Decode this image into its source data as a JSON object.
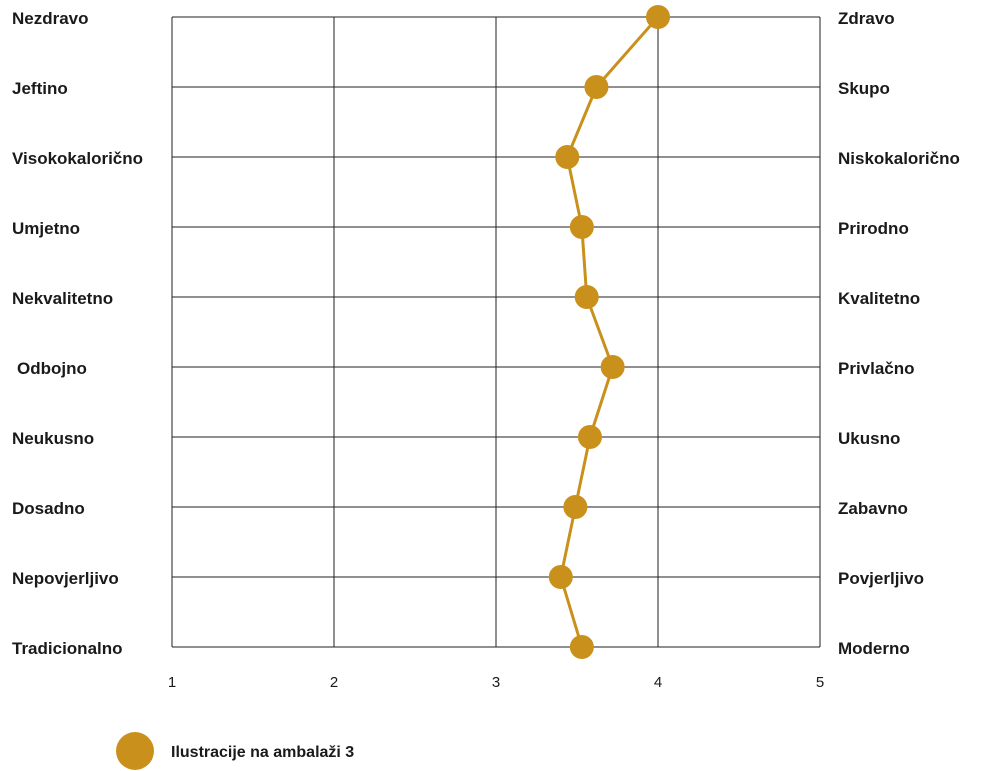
{
  "chart_data": {
    "type": "line",
    "orientation": "horizontal-profile",
    "left_labels": [
      "Nezdravo",
      "Jeftino",
      "Visokokalorično",
      "Umjetno",
      "Nekvalitetno",
      "Odbojno",
      "Neukusno",
      "Dosadno",
      "Nepovjerljivo",
      "Tradicionalno"
    ],
    "right_labels": [
      "Zdravo",
      "Skupo",
      "Niskokalorično",
      "Prirodno",
      "Kvalitetno",
      "Privlačno",
      "Ukusno",
      "Zabavno",
      "Povjerljivo",
      "Moderno"
    ],
    "x_ticks": [
      "1",
      "2",
      "3",
      "4",
      "5"
    ],
    "xlim": [
      1,
      5
    ],
    "grid": true,
    "series": [
      {
        "name": "Ilustracije na ambalaži 3",
        "color": "#C9901C",
        "values": [
          4.0,
          3.62,
          3.44,
          3.53,
          3.56,
          3.72,
          3.58,
          3.49,
          3.4,
          3.53
        ]
      }
    ],
    "legend_position": "bottom-left"
  }
}
